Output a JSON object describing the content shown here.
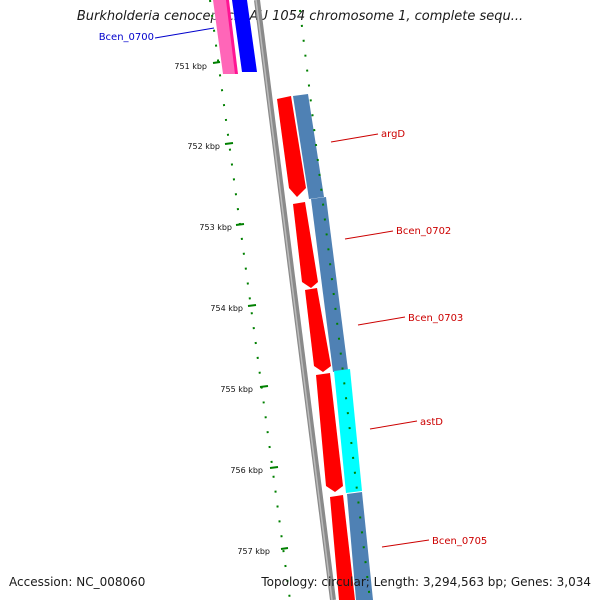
{
  "title": "Burkholderia cenocepacia AU 1054 chromosome 1, complete sequ...",
  "accession": "Accession: NC_008060",
  "topology": "Topology: circular; Length: 3,294,563 bp; Genes: 3,034",
  "kbp_labels": [
    "751 kbp",
    "752 kbp",
    "753 kbp",
    "754 kbp",
    "755 kbp",
    "756 kbp",
    "757 kbp"
  ],
  "gene_labels": [
    {
      "text": "Bcen_0700",
      "color": "#0000cc"
    },
    {
      "text": "argD",
      "color": "#cc0000"
    },
    {
      "text": "Bcen_0702",
      "color": "#cc0000"
    },
    {
      "text": "Bcen_0703",
      "color": "#cc0000"
    },
    {
      "text": "astD",
      "color": "#cc0000"
    },
    {
      "text": "Bcen_0705",
      "color": "#cc0000"
    }
  ],
  "colors": {
    "backbone": "#7a7a7a",
    "cds_red": "#ff0000",
    "cds_blue": "#0000ff",
    "cds_magenta": "#ff1493",
    "steel": "#4f81b4",
    "cyan": "#00ffff",
    "tick": "#008000"
  }
}
